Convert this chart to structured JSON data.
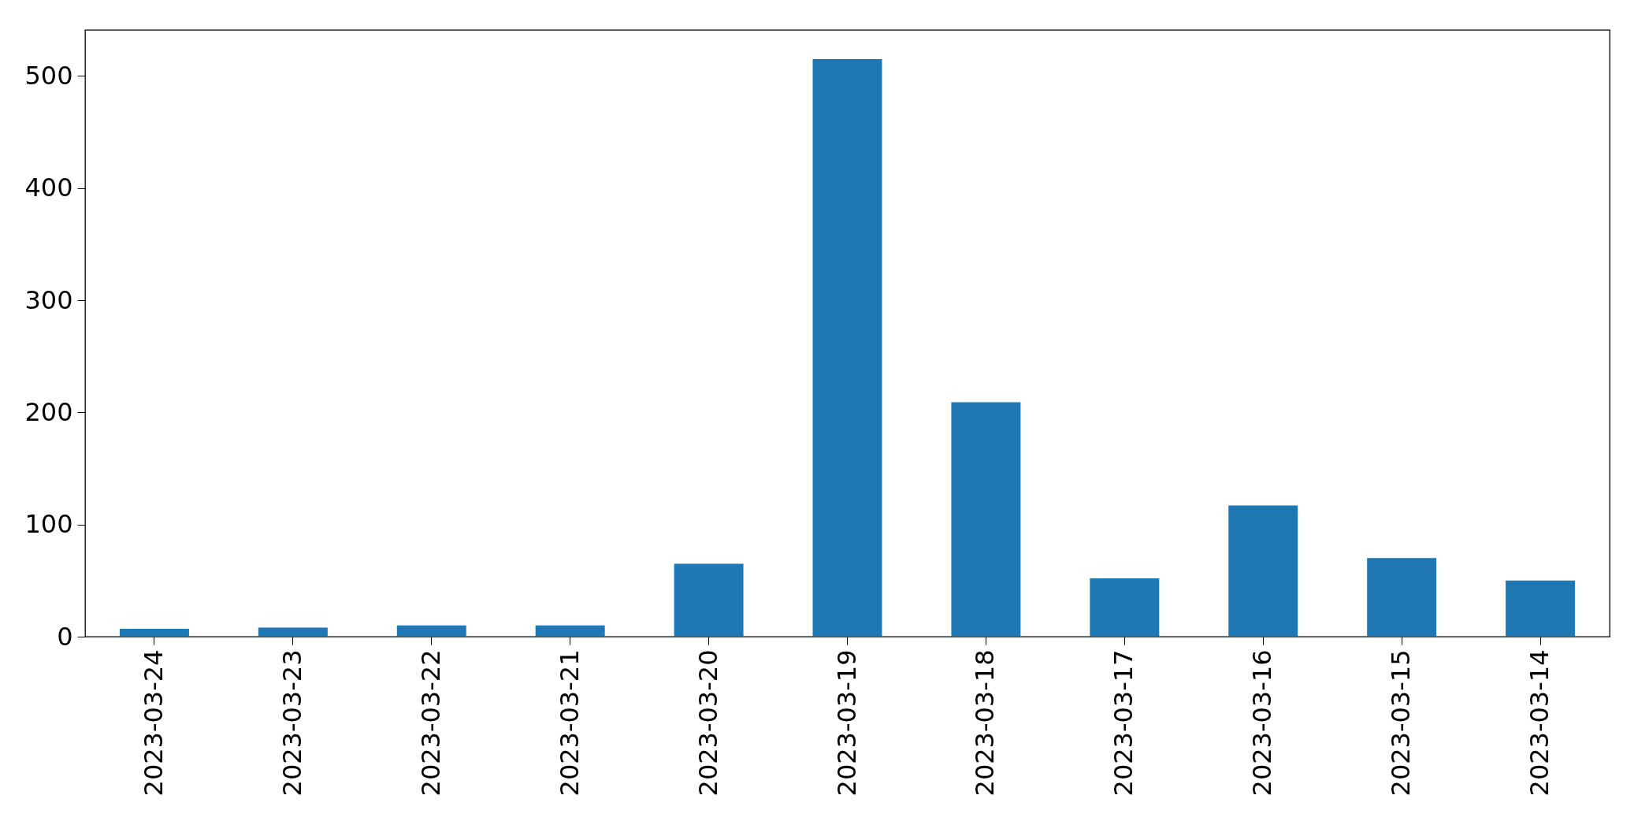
{
  "chart_data": {
    "type": "bar",
    "categories": [
      "2023-03-24",
      "2023-03-23",
      "2023-03-22",
      "2023-03-21",
      "2023-03-20",
      "2023-03-19",
      "2023-03-18",
      "2023-03-17",
      "2023-03-16",
      "2023-03-15",
      "2023-03-14"
    ],
    "values": [
      7,
      8,
      10,
      10,
      65,
      515,
      209,
      52,
      117,
      70,
      50
    ],
    "color": "#1f77b4",
    "ylim": [
      0,
      541
    ],
    "yticks": [
      0,
      100,
      200,
      300,
      400,
      500
    ],
    "grid": false
  }
}
